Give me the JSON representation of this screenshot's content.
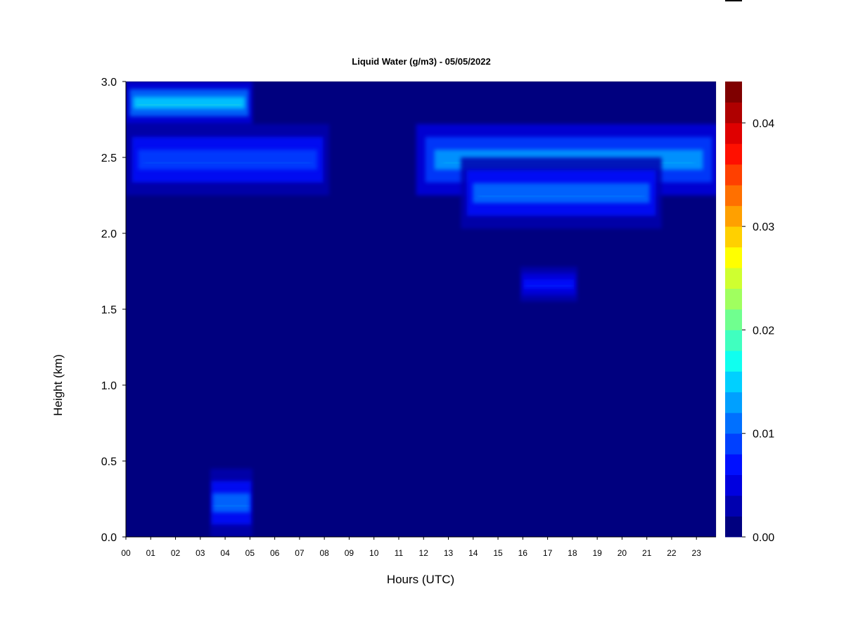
{
  "chart_data": {
    "type": "heatmap",
    "title": "Liquid Water (g/m3) - 05/05/2022",
    "xlabel": "Hours (UTC)",
    "ylabel": "Height (km)",
    "xlim": [
      0,
      24
    ],
    "ylim": [
      0,
      3.0
    ],
    "x_ticks": [
      "00",
      "01",
      "02",
      "03",
      "04",
      "05",
      "06",
      "07",
      "08",
      "09",
      "10",
      "11",
      "12",
      "13",
      "14",
      "15",
      "16",
      "17",
      "18",
      "19",
      "20",
      "21",
      "22",
      "23"
    ],
    "y_ticks": [
      "0.0",
      "0.5",
      "1.0",
      "1.5",
      "2.0",
      "2.5",
      "3.0"
    ],
    "colorbar": {
      "min": 0.0,
      "max": 0.044,
      "ticks": [
        "0.00",
        "0.01",
        "0.02",
        "0.03",
        "0.04"
      ],
      "colors": [
        "#00007F",
        "#0000AF",
        "#0000DF",
        "#0010FF",
        "#0040FF",
        "#0070FF",
        "#00A0FF",
        "#00D0FF",
        "#10FFEF",
        "#40FFBF",
        "#70FF8F",
        "#A0FF5F",
        "#CFFF30",
        "#FFFF00",
        "#FFD000",
        "#FFA000",
        "#FF7000",
        "#FF4000",
        "#FF1000",
        "#DF0000",
        "#AF0000",
        "#7F0000"
      ]
    },
    "features": [
      {
        "region": "cloud layer",
        "x": [
          0.0,
          8.2
        ],
        "y": [
          2.25,
          2.72
        ],
        "peak": 0.012
      },
      {
        "region": "cloud layer",
        "x": [
          11.7,
          24.0
        ],
        "y": [
          2.25,
          2.72
        ],
        "peak": 0.016
      },
      {
        "region": "cloud layer",
        "x": [
          13.5,
          21.6
        ],
        "y": [
          2.03,
          2.5
        ],
        "peak": 0.014
      },
      {
        "region": "upper cloud",
        "x": [
          0.0,
          5.1
        ],
        "y": [
          2.72,
          3.0
        ],
        "peak": 0.02
      },
      {
        "region": "low cloud",
        "x": [
          3.4,
          5.1
        ],
        "y": [
          0.0,
          0.45
        ],
        "peak": 0.014
      },
      {
        "region": "mid cloud",
        "x": [
          15.9,
          18.2
        ],
        "y": [
          1.55,
          1.78
        ],
        "peak": 0.01
      }
    ],
    "grid": false,
    "legend": "colorbar right"
  }
}
